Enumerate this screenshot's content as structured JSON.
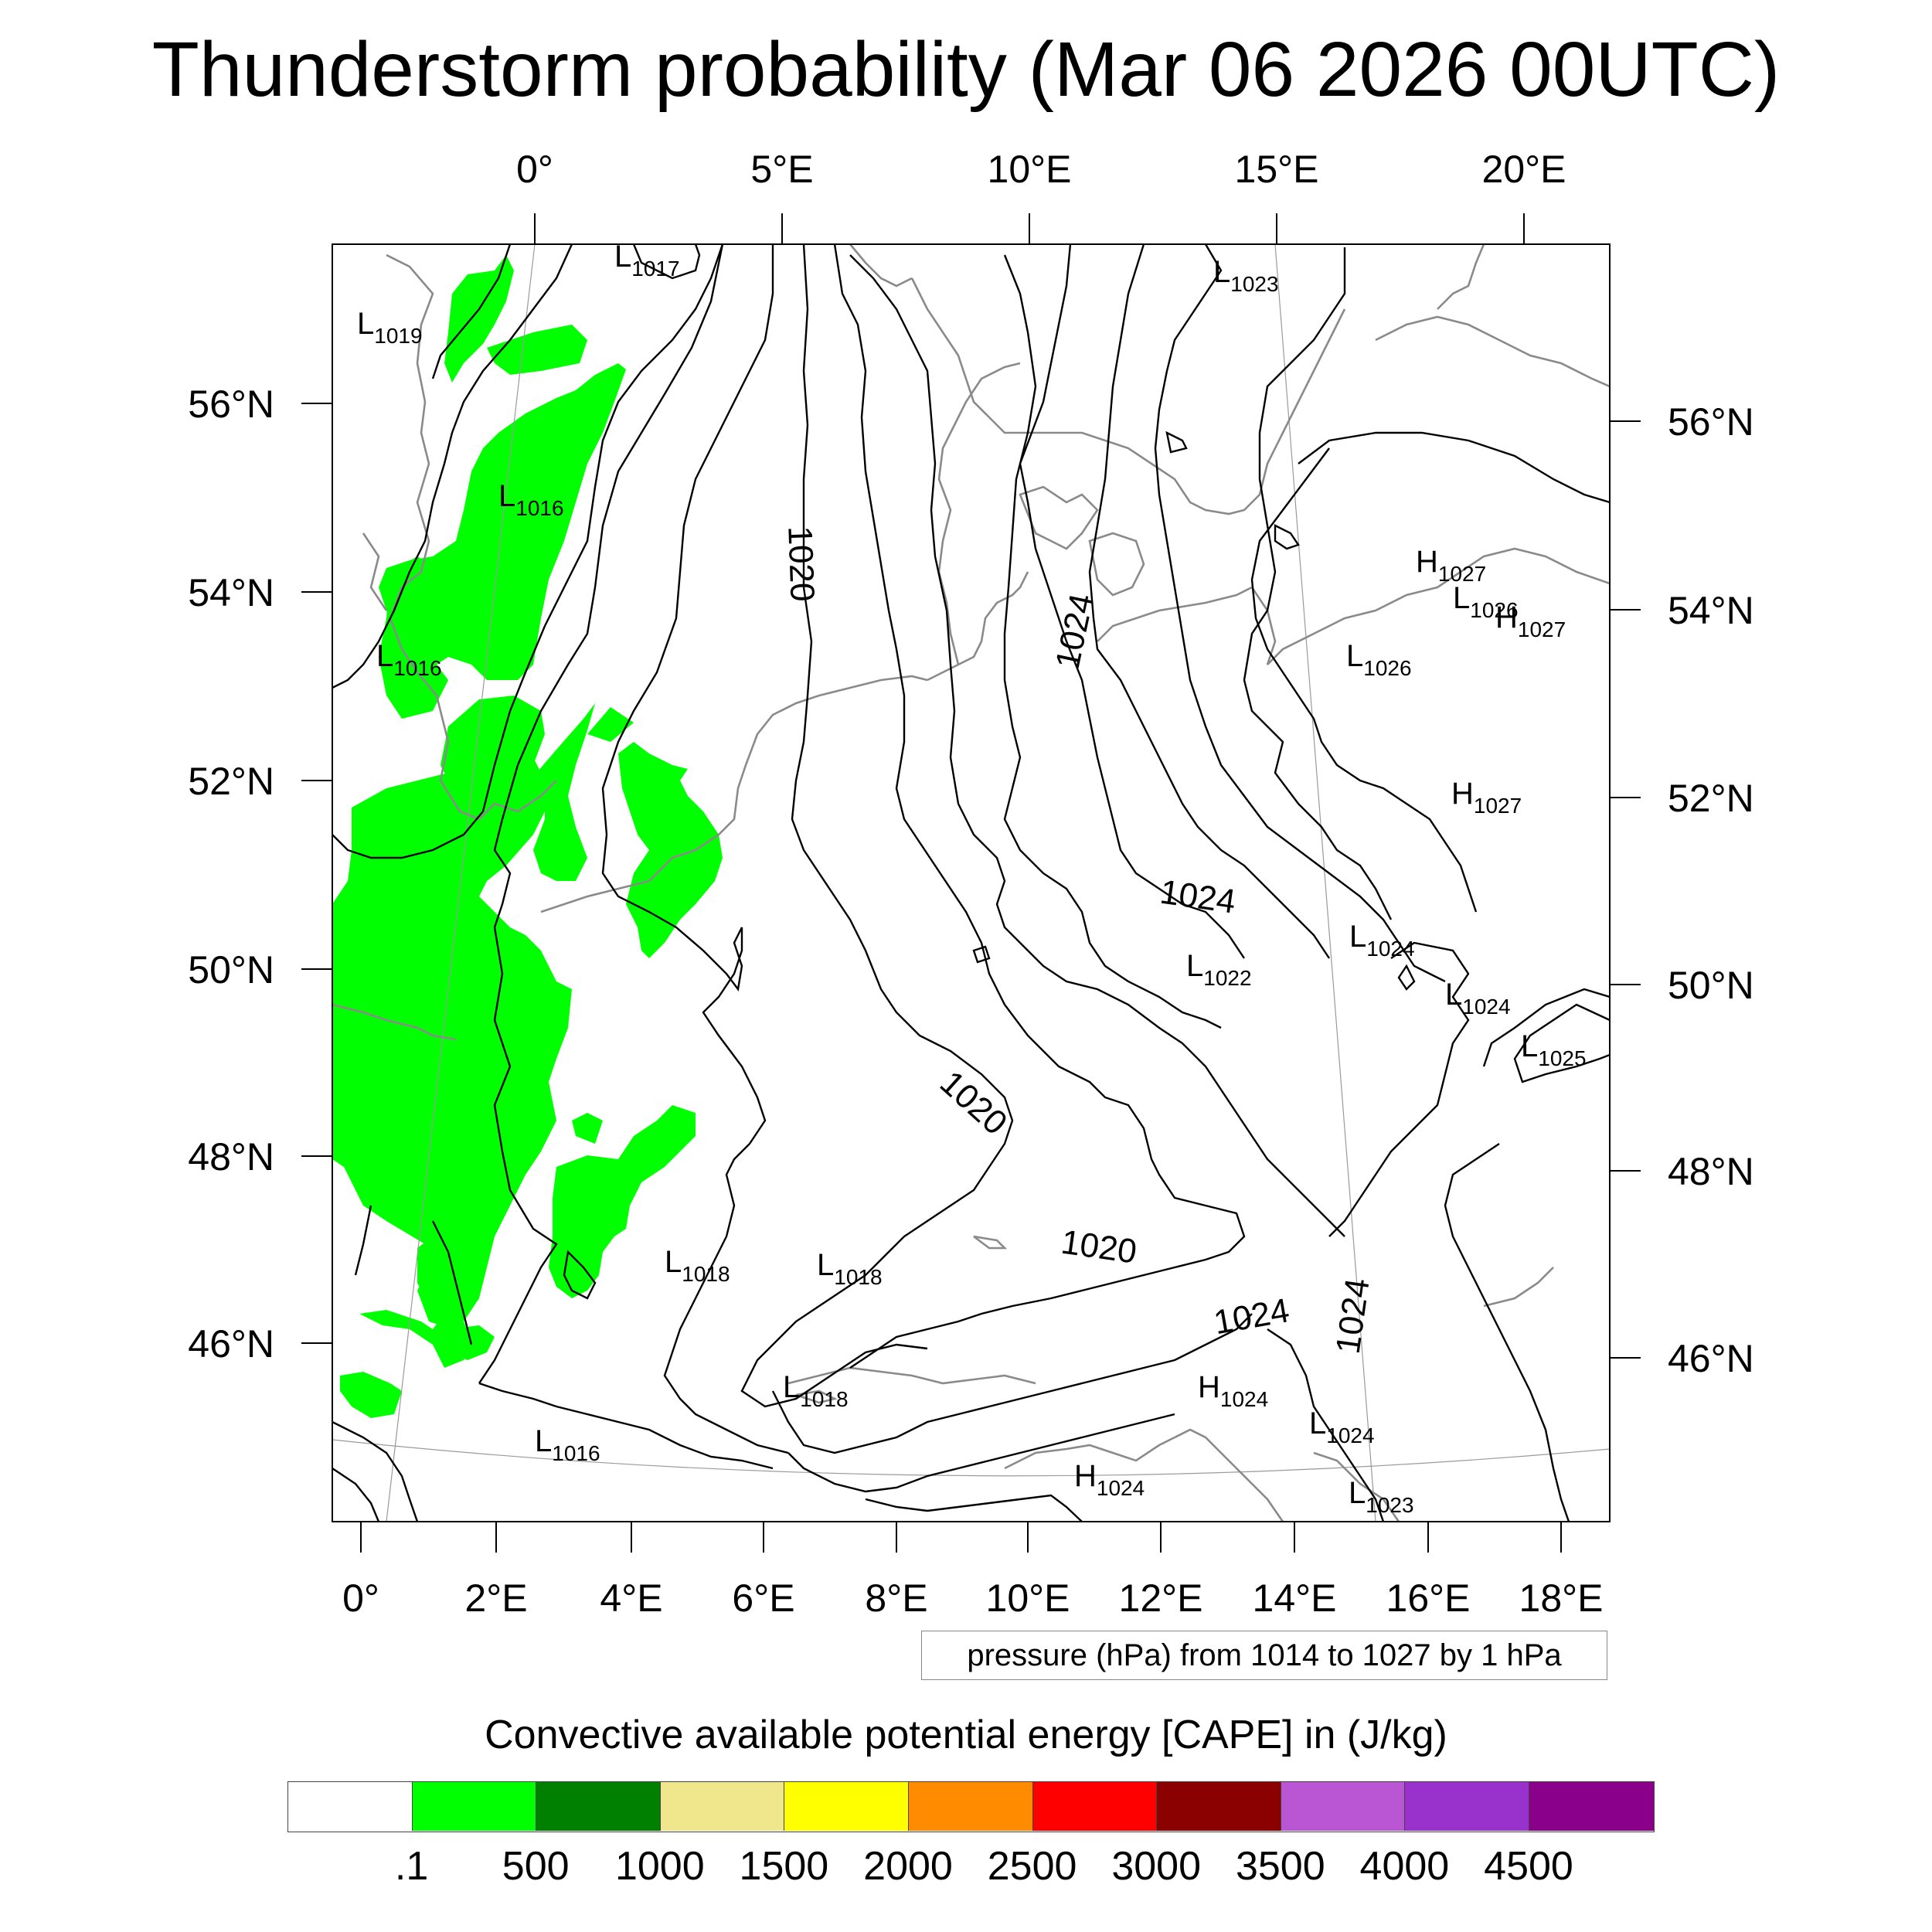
{
  "title": "Thunderstorm probability (Mar 06 2026 00UTC)",
  "map": {
    "top_lon_labels": [
      "0°",
      "5°E",
      "10°E",
      "15°E",
      "20°E"
    ],
    "bottom_lon_labels": [
      "0°",
      "2°E",
      "4°E",
      "6°E",
      "8°E",
      "10°E",
      "12°E",
      "14°E",
      "16°E",
      "18°E"
    ],
    "left_lat_labels": [
      "56°N",
      "54°N",
      "52°N",
      "50°N",
      "48°N",
      "46°N"
    ],
    "right_lat_labels": [
      "56°N",
      "54°N",
      "52°N",
      "50°N",
      "48°N",
      "46°N"
    ],
    "contour_labels": [
      "1020",
      "1024",
      "1024",
      "1020",
      "1020",
      "1024",
      "1024"
    ],
    "pressure_centers": [
      {
        "kind": "L",
        "value": "1017"
      },
      {
        "kind": "L",
        "value": "1019"
      },
      {
        "kind": "L",
        "value": "1016"
      },
      {
        "kind": "L",
        "value": "1016"
      },
      {
        "kind": "L",
        "value": "1023"
      },
      {
        "kind": "H",
        "value": "1027"
      },
      {
        "kind": "L",
        "value": "1026"
      },
      {
        "kind": "H",
        "value": "1027"
      },
      {
        "kind": "L",
        "value": "1026"
      },
      {
        "kind": "H",
        "value": "1027"
      },
      {
        "kind": "L",
        "value": "1024"
      },
      {
        "kind": "L",
        "value": "1022"
      },
      {
        "kind": "L",
        "value": "1024"
      },
      {
        "kind": "L",
        "value": "1025"
      },
      {
        "kind": "L",
        "value": "1018"
      },
      {
        "kind": "L",
        "value": "1018"
      },
      {
        "kind": "L",
        "value": "1018"
      },
      {
        "kind": "H",
        "value": "1024"
      },
      {
        "kind": "L",
        "value": "1024"
      },
      {
        "kind": "L",
        "value": "1016"
      },
      {
        "kind": "H",
        "value": "1024"
      },
      {
        "kind": "L",
        "value": "1023"
      }
    ]
  },
  "contour_info": "pressure (hPa) from 1014 to 1027 by 1 hPa",
  "colorbar": {
    "title": "Convective available potential energy [CAPE] in (J/kg)",
    "colors": [
      "#ffffff",
      "#00ff00",
      "#008000",
      "#f0e68c",
      "#ffff00",
      "#ff8c00",
      "#ff0000",
      "#8b0000",
      "#ba55d3",
      "#9932cc",
      "#8b008b"
    ],
    "labels": [
      ".1",
      "500",
      "1000",
      "1500",
      "2000",
      "2500",
      "3000",
      "3500",
      "4000",
      "4500"
    ]
  }
}
